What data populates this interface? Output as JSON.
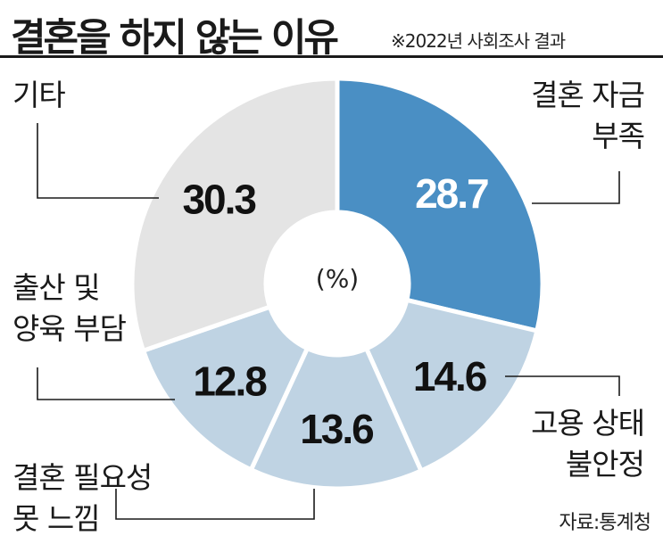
{
  "header": {
    "title": "결혼을 하지 않는 이유",
    "subtitle": "※2022년 사회조사 결과"
  },
  "chart_data": {
    "type": "pie",
    "style": "donut",
    "title": "결혼을 하지 않는 이유",
    "subtitle": "※2022년 사회조사 결과",
    "unit": "(%)",
    "slices": [
      {
        "label": "결혼 자금 부족",
        "lines": [
          "결혼 자금",
          "부족"
        ],
        "value": 28.7,
        "color": "#4a8fc4",
        "value_color": "#ffffff"
      },
      {
        "label": "고용 상태 불안정",
        "lines": [
          "고용 상태",
          "불안정"
        ],
        "value": 14.6,
        "color": "#bfd3e3",
        "value_color": "#111111"
      },
      {
        "label": "결혼 필요성 못 느낌",
        "lines": [
          "결혼 필요성",
          "못 느낌"
        ],
        "value": 13.6,
        "color": "#bfd3e3",
        "value_color": "#111111"
      },
      {
        "label": "출산 및 양육 부담",
        "lines": [
          "출산 및",
          "양육 부담"
        ],
        "value": 12.8,
        "color": "#bfd3e3",
        "value_color": "#111111"
      },
      {
        "label": "기타",
        "lines": [
          "기타"
        ],
        "value": 30.3,
        "color": "#e4e4e4",
        "value_color": "#111111"
      }
    ],
    "source": "자료:통계청"
  }
}
